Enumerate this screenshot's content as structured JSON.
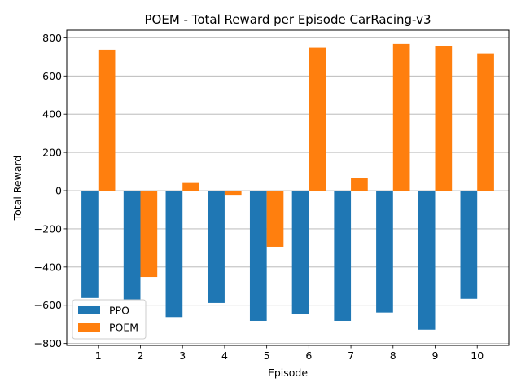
{
  "chart_data": {
    "type": "bar",
    "title": "POEM - Total Reward per Episode CarRacing-v3",
    "xlabel": "Episode",
    "ylabel": "Total Reward",
    "categories": [
      "1",
      "2",
      "3",
      "4",
      "5",
      "6",
      "7",
      "8",
      "9",
      "10"
    ],
    "series": [
      {
        "name": "PPO",
        "color": "#1f77b4",
        "values": [
          -562,
          -572,
          -662,
          -588,
          -682,
          -648,
          -682,
          -638,
          -728,
          -566
        ]
      },
      {
        "name": "POEM",
        "color": "#ff7f0e",
        "values": [
          738,
          -452,
          40,
          -26,
          -294,
          748,
          66,
          768,
          756,
          718
        ]
      }
    ],
    "ylim": [
      -810,
      840
    ],
    "yticks": [
      -800,
      -600,
      -400,
      -200,
      0,
      200,
      400,
      600,
      800
    ],
    "grid": "horizontal",
    "legend_position": "lower-left"
  }
}
